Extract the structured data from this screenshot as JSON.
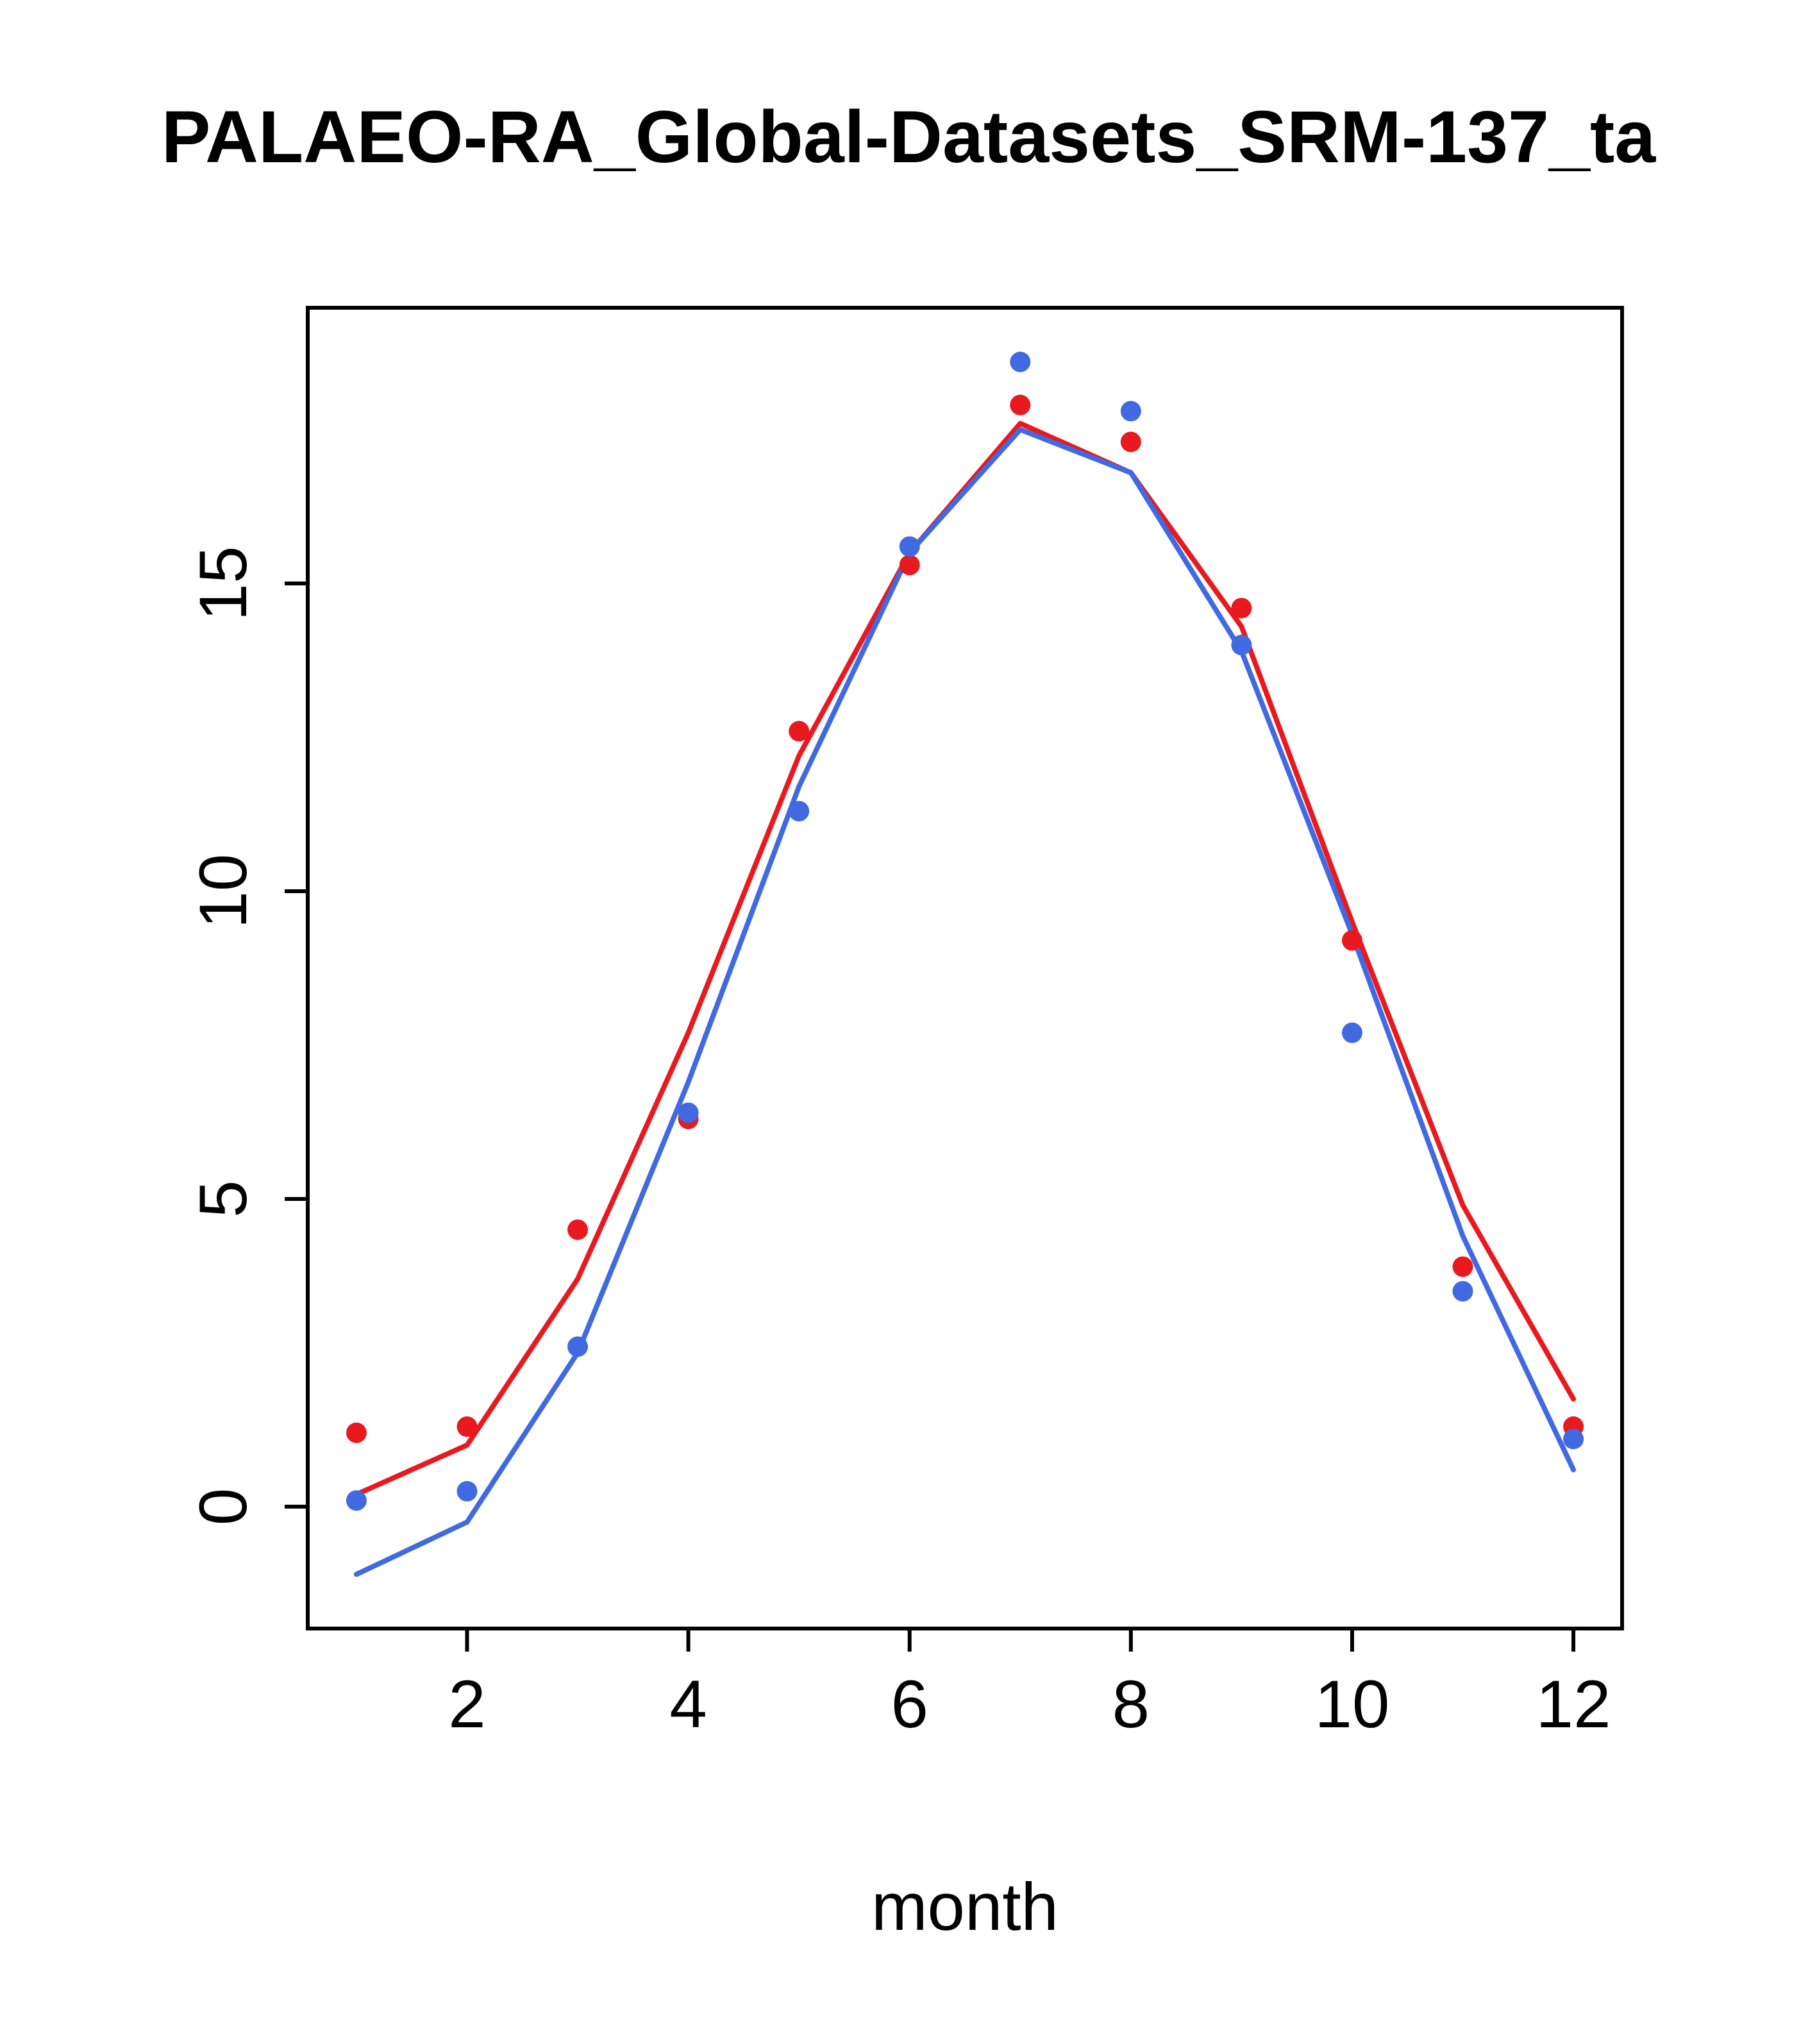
{
  "page": {
    "background": "#ffffff"
  },
  "chart_data": {
    "type": "line+scatter",
    "title": "PALAEO-RA_Global-Datasets_SRM-137_ta",
    "xlabel": "month",
    "ylabel": "",
    "x": [
      1,
      2,
      3,
      4,
      5,
      6,
      7,
      8,
      9,
      10,
      11,
      12
    ],
    "x_ticks": [
      2,
      4,
      6,
      8,
      10,
      12
    ],
    "y_ticks": [
      0,
      5,
      10,
      15
    ],
    "xlim": [
      0.56,
      12.44
    ],
    "ylim": [
      -1.98,
      19.48
    ],
    "grid": false,
    "legend": "none",
    "colors": {
      "red": "#e8191f",
      "blue": "#4169e1",
      "axis": "#000000"
    },
    "series": [
      {
        "name": "red-line",
        "kind": "line",
        "color": "#e8191f",
        "values": [
          0.2,
          1.0,
          3.7,
          7.7,
          12.2,
          15.5,
          17.6,
          16.8,
          14.3,
          9.5,
          4.9,
          1.75
        ]
      },
      {
        "name": "blue-line",
        "kind": "line",
        "color": "#4169e1",
        "values": [
          -1.1,
          -0.25,
          2.5,
          6.9,
          11.7,
          15.5,
          17.5,
          16.8,
          13.9,
          9.3,
          4.4,
          0.6
        ]
      },
      {
        "name": "red-points",
        "kind": "points",
        "color": "#e8191f",
        "values": [
          1.2,
          1.3,
          4.5,
          6.3,
          12.6,
          15.3,
          17.9,
          17.3,
          14.6,
          9.2,
          3.9,
          1.3
        ]
      },
      {
        "name": "blue-points",
        "kind": "points",
        "color": "#4169e1",
        "values": [
          0.1,
          0.25,
          2.6,
          6.4,
          11.3,
          15.6,
          18.6,
          17.8,
          14.0,
          7.7,
          3.5,
          1.1
        ]
      }
    ]
  }
}
